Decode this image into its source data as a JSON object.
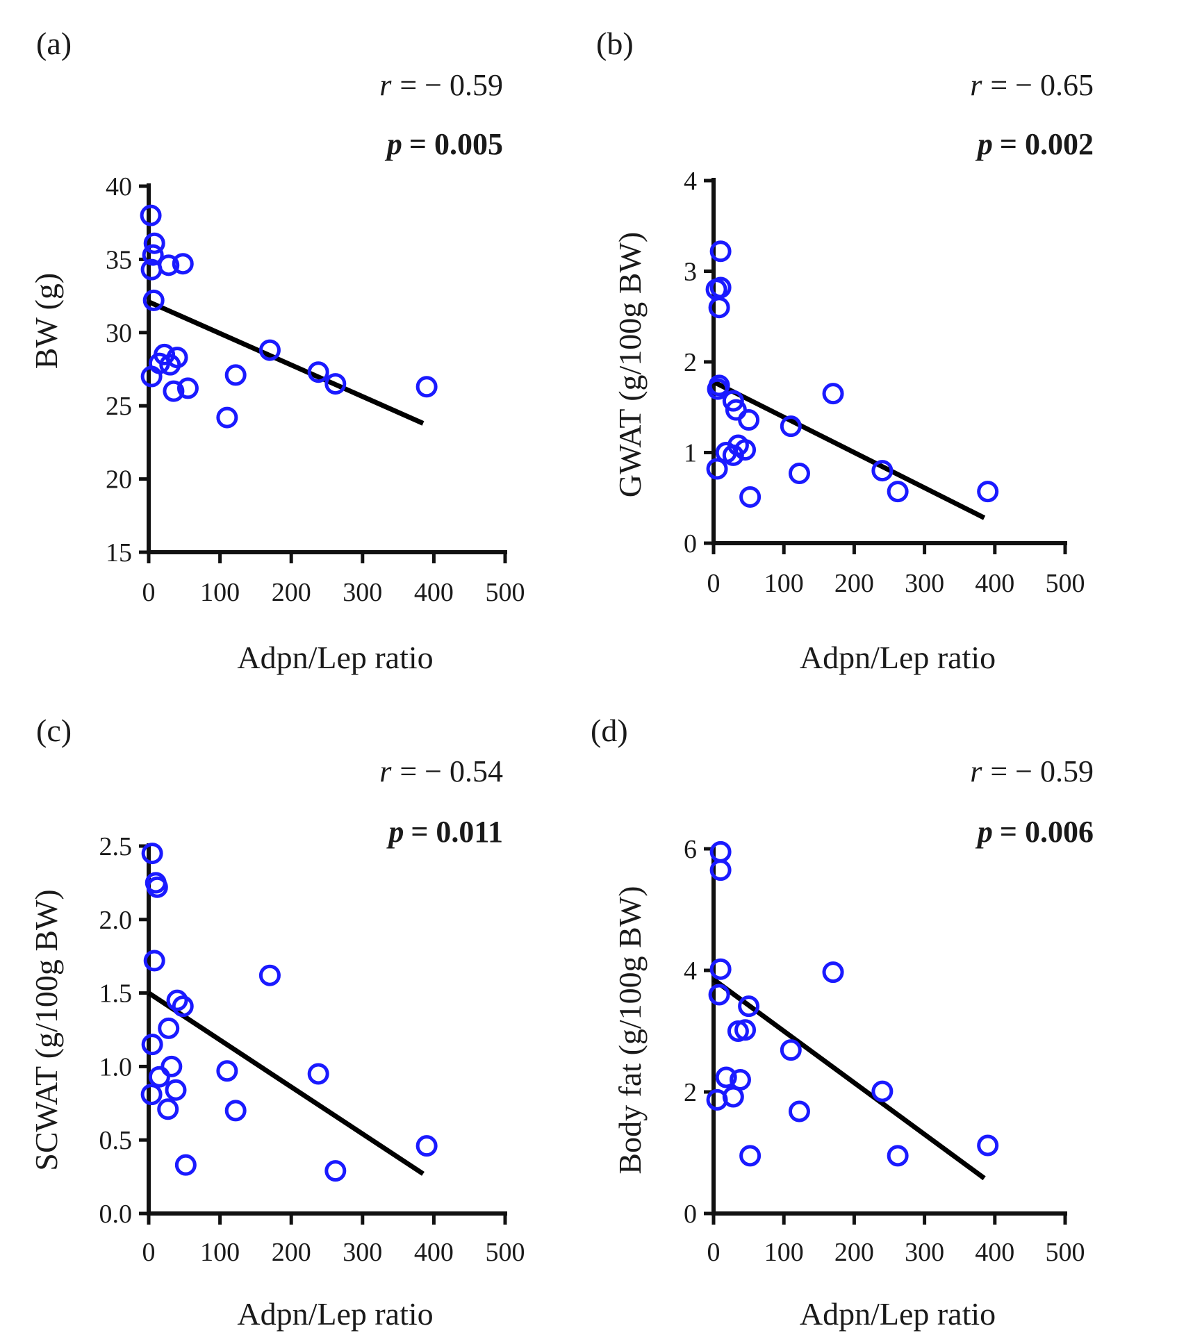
{
  "colors": {
    "points": "#1a1aff",
    "axes": "#111111",
    "regression": "#000000"
  },
  "chart_data": [
    {
      "id": "a",
      "type": "scatter",
      "panel_label": "(a)",
      "r_label": "r",
      "r_value": "= − 0.59",
      "p_label": "p",
      "p_value": "= 0.005",
      "xlabel": "Adpn/Lep ratio",
      "ylabel": "BW (g)",
      "xlim": [
        0,
        500
      ],
      "ylim": [
        15,
        40
      ],
      "xticks": [
        0,
        100,
        200,
        300,
        400,
        500
      ],
      "yticks": [
        15,
        20,
        25,
        30,
        35,
        40
      ],
      "ytick_labels": [
        "15",
        "20",
        "25",
        "30",
        "35",
        "40"
      ],
      "points": [
        [
          3,
          38.0
        ],
        [
          8,
          36.1
        ],
        [
          6,
          35.3
        ],
        [
          4,
          34.3
        ],
        [
          28,
          34.6
        ],
        [
          48,
          34.7
        ],
        [
          7,
          32.2
        ],
        [
          4,
          27.0
        ],
        [
          15,
          27.9
        ],
        [
          22,
          28.5
        ],
        [
          30,
          27.8
        ],
        [
          40,
          28.3
        ],
        [
          35,
          26.0
        ],
        [
          55,
          26.2
        ],
        [
          110,
          24.2
        ],
        [
          122,
          27.1
        ],
        [
          170,
          28.8
        ],
        [
          238,
          27.3
        ],
        [
          262,
          26.5
        ],
        [
          390,
          26.3
        ]
      ],
      "regression": {
        "x": [
          0,
          385
        ],
        "y": [
          32.1,
          23.8
        ]
      }
    },
    {
      "id": "b",
      "type": "scatter",
      "panel_label": "(b)",
      "r_label": "r",
      "r_value": "= − 0.65",
      "p_label": "p",
      "p_value": "= 0.002",
      "xlabel": "Adpn/Lep ratio",
      "ylabel": "GWAT (g/100g BW)",
      "xlim": [
        0,
        500
      ],
      "ylim": [
        0,
        4
      ],
      "xticks": [
        0,
        100,
        200,
        300,
        400,
        500
      ],
      "yticks": [
        0,
        1,
        2,
        3,
        4
      ],
      "ytick_labels": [
        "0",
        "1",
        "2",
        "3",
        "4"
      ],
      "points": [
        [
          10,
          3.22
        ],
        [
          4,
          2.8
        ],
        [
          10,
          2.82
        ],
        [
          8,
          2.6
        ],
        [
          8,
          1.74
        ],
        [
          6,
          1.7
        ],
        [
          28,
          1.57
        ],
        [
          32,
          1.47
        ],
        [
          50,
          1.36
        ],
        [
          110,
          1.29
        ],
        [
          170,
          1.65
        ],
        [
          35,
          1.08
        ],
        [
          45,
          1.03
        ],
        [
          28,
          0.97
        ],
        [
          18,
          1.0
        ],
        [
          5,
          0.82
        ],
        [
          122,
          0.77
        ],
        [
          52,
          0.51
        ],
        [
          240,
          0.8
        ],
        [
          262,
          0.57
        ],
        [
          390,
          0.57
        ]
      ],
      "regression": {
        "x": [
          0,
          385
        ],
        "y": [
          1.78,
          0.28
        ]
      }
    },
    {
      "id": "c",
      "type": "scatter",
      "panel_label": "(c)",
      "r_label": "r",
      "r_value": "= − 0.54",
      "p_label": "p",
      "p_value": "= 0.011",
      "xlabel": "Adpn/Lep ratio",
      "ylabel": "SCWAT (g/100g BW)",
      "xlim": [
        0,
        500
      ],
      "ylim": [
        0,
        2.5
      ],
      "xticks": [
        0,
        100,
        200,
        300,
        400,
        500
      ],
      "yticks": [
        0,
        0.5,
        1.0,
        1.5,
        2.0,
        2.5
      ],
      "ytick_labels": [
        "0.0",
        "0.5",
        "1.0",
        "1.5",
        "2.0",
        "2.5"
      ],
      "points": [
        [
          5,
          2.45
        ],
        [
          10,
          2.25
        ],
        [
          12,
          2.22
        ],
        [
          8,
          1.72
        ],
        [
          40,
          1.45
        ],
        [
          48,
          1.41
        ],
        [
          170,
          1.62
        ],
        [
          28,
          1.26
        ],
        [
          5,
          1.15
        ],
        [
          32,
          1.0
        ],
        [
          15,
          0.93
        ],
        [
          38,
          0.84
        ],
        [
          4,
          0.81
        ],
        [
          27,
          0.71
        ],
        [
          110,
          0.97
        ],
        [
          122,
          0.7
        ],
        [
          238,
          0.95
        ],
        [
          52,
          0.33
        ],
        [
          262,
          0.29
        ],
        [
          390,
          0.46
        ]
      ],
      "regression": {
        "x": [
          0,
          385
        ],
        "y": [
          1.5,
          0.27
        ]
      }
    },
    {
      "id": "d",
      "type": "scatter",
      "panel_label": "(d)",
      "r_label": "r",
      "r_value": "= − 0.59",
      "p_label": "p",
      "p_value": "= 0.006",
      "xlabel": "Adpn/Lep ratio",
      "ylabel": "Body fat (g/100g BW)",
      "xlim": [
        0,
        500
      ],
      "ylim": [
        0,
        6
      ],
      "xticks": [
        0,
        100,
        200,
        300,
        400,
        500
      ],
      "yticks": [
        0,
        2,
        4,
        6
      ],
      "ytick_labels": [
        "0",
        "2",
        "4",
        "6"
      ],
      "points": [
        [
          10,
          5.95
        ],
        [
          10,
          5.65
        ],
        [
          10,
          4.02
        ],
        [
          8,
          3.6
        ],
        [
          50,
          3.41
        ],
        [
          35,
          3.0
        ],
        [
          45,
          3.02
        ],
        [
          170,
          3.97
        ],
        [
          110,
          2.69
        ],
        [
          240,
          2.01
        ],
        [
          18,
          2.24
        ],
        [
          38,
          2.2
        ],
        [
          28,
          1.92
        ],
        [
          5,
          1.87
        ],
        [
          122,
          1.68
        ],
        [
          52,
          0.95
        ],
        [
          262,
          0.95
        ],
        [
          390,
          1.12
        ]
      ],
      "regression": {
        "x": [
          0,
          385
        ],
        "y": [
          3.85,
          0.58
        ]
      }
    }
  ]
}
